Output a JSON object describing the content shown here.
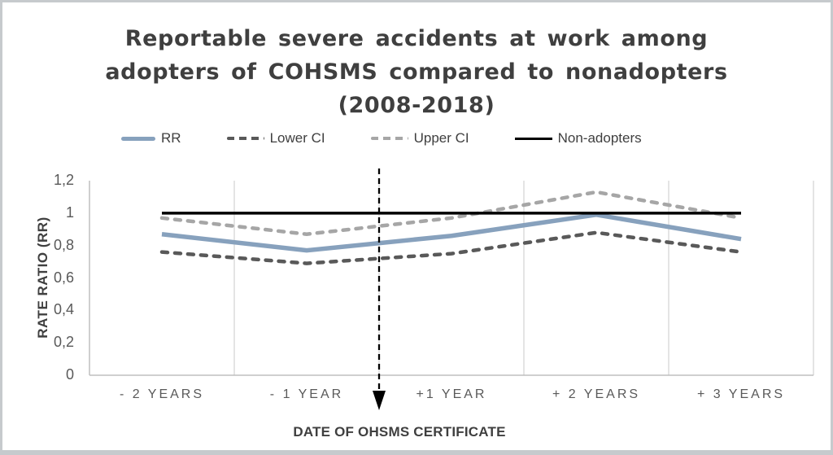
{
  "header": {
    "title_line1": "Reportable severe accidents at work among",
    "title_line2": "adopters of COHSMS compared to nonadopters",
    "title_line3": "(2008-2018)"
  },
  "legend": {
    "items": [
      {
        "id": "rr",
        "label": "RR"
      },
      {
        "id": "lower",
        "label": "Lower CI"
      },
      {
        "id": "upper",
        "label": "Upper CI"
      },
      {
        "id": "non",
        "label": "Non-adopters"
      }
    ]
  },
  "chart_data": {
    "type": "line",
    "title": "Reportable severe accidents at work among adopters of COHSMS compared to nonadopters (2008-2018)",
    "categories": [
      "- 2 YEARS",
      "- 1 YEAR",
      "+1 YEAR",
      "+ 2 YEARS",
      "+ 3 YEARS"
    ],
    "series": [
      {
        "name": "Upper CI",
        "values": [
          0.97,
          0.87,
          0.97,
          1.13,
          0.97
        ],
        "color": "#a6a6a6",
        "style": "dashed",
        "width": 4.5
      },
      {
        "name": "Lower CI",
        "values": [
          0.76,
          0.69,
          0.75,
          0.88,
          0.76
        ],
        "color": "#595959",
        "style": "dashed",
        "width": 4.5
      },
      {
        "name": "RR",
        "values": [
          0.87,
          0.77,
          0.86,
          0.99,
          0.84
        ],
        "color": "#87a1bd",
        "style": "solid",
        "width": 5.5
      },
      {
        "name": "Non-adopters",
        "values": [
          1.0,
          1.0,
          1.0,
          1.0,
          1.0
        ],
        "color": "#000000",
        "style": "solid",
        "width": 3.5
      }
    ],
    "xlabel": "DATE OF OHSMS CERTIFICATE",
    "ylabel": "RATE RATIO (RR)",
    "ylim": [
      0,
      1.2
    ],
    "ytick_values": [
      0,
      0.2,
      0.4,
      0.6,
      0.8,
      1.0,
      1.2
    ],
    "ytick_labels": [
      "0",
      "0,2",
      "0,4",
      "0,6",
      "0,8",
      "1",
      "1,2"
    ],
    "grid": "vertical-only",
    "gridline_color": "#d9d9d9",
    "axis_line_color": "#bfbfbf",
    "legend_position": "top",
    "annotation": {
      "type": "dashed-down-arrow",
      "position": "between - 1 YEAR and +1 YEAR",
      "meaning": "DATE OF OHSMS CERTIFICATE",
      "color": "#000000"
    }
  }
}
